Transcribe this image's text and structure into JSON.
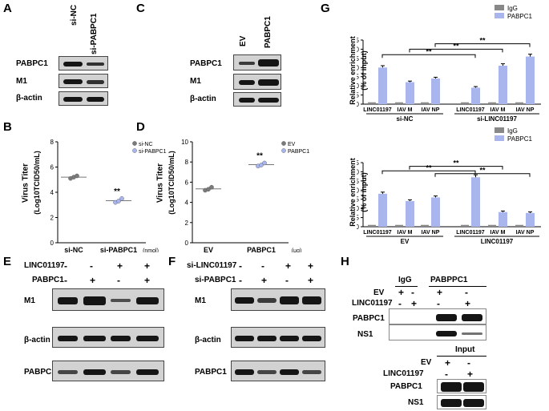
{
  "panels": {
    "A": "A",
    "B": "B",
    "C": "C",
    "D": "D",
    "E": "E",
    "F": "F",
    "G": "G",
    "H": "H"
  },
  "A": {
    "lanes": [
      "si-NC",
      "si-PABPC1"
    ],
    "rows": [
      "PABPC1",
      "M1",
      "β-actin"
    ]
  },
  "C": {
    "lanes": [
      "EV",
      "PABPC1"
    ],
    "rows": [
      "PABPC1",
      "M1",
      "β-actin"
    ]
  },
  "B": {
    "ylabel": "Virus Titer",
    "ylabel2": "(Log10TCID50/mL)",
    "yticks": [
      "0",
      "2",
      "4",
      "6",
      "8"
    ],
    "xcats": [
      "si-NC",
      "si-PABPC1"
    ],
    "xunit": "(nmol)",
    "legend": [
      "si-NC",
      "si-PABPC1"
    ],
    "sig": "**",
    "values": [
      [
        5.1,
        5.2,
        5.3
      ],
      [
        3.2,
        3.3,
        3.5
      ]
    ],
    "ymax": 8
  },
  "D": {
    "ylabel": "Virus Titer",
    "ylabel2": "(Log10TCID50/mL)",
    "yticks": [
      "0",
      "2",
      "4",
      "6",
      "8",
      "10"
    ],
    "xcats": [
      "EV",
      "PABPC1"
    ],
    "xunit": "(μg)",
    "legend": [
      "EV",
      "PABPC1"
    ],
    "sig": "**",
    "values": [
      [
        5.2,
        5.3,
        5.5
      ],
      [
        7.6,
        7.7,
        7.9
      ]
    ],
    "ymax": 10
  },
  "E": {
    "cond": [
      {
        "label": "LINC01197",
        "signs": [
          "-",
          "-",
          "+",
          "+"
        ]
      },
      {
        "label": "PABPC1",
        "signs": [
          "-",
          "+",
          "-",
          "+"
        ]
      }
    ],
    "rows": [
      "M1",
      "β-actin",
      "PABPC1"
    ]
  },
  "F": {
    "cond": [
      {
        "label": "si-LINC01197",
        "signs": [
          "-",
          "-",
          "+",
          "+"
        ]
      },
      {
        "label": "si-PABPC1",
        "signs": [
          "-",
          "+",
          "-",
          "+"
        ]
      }
    ],
    "rows": [
      "M1",
      "β-actin",
      "PABPC1"
    ]
  },
  "G": {
    "ylabel": "Relative enrichment",
    "ylabel2": "(% of input)",
    "yticks": [
      "0",
      "5",
      "10",
      "15",
      "20",
      "25",
      "30",
      "35"
    ],
    "legend": [
      "IgG",
      "PABPC1"
    ],
    "sig": "**",
    "colors": {
      "IgG": "#888888",
      "PABPC1": "#a9b6ee"
    },
    "xcats": [
      "LINC01197",
      "IAV M",
      "IAV NP",
      "LINC01197",
      "IAV M",
      "IAV NP"
    ],
    "top": {
      "groups": [
        "si-NC",
        "si-LINC01197"
      ],
      "IgG": [
        1,
        1,
        1,
        1,
        1,
        1
      ],
      "PABPC1": [
        20,
        12,
        14,
        9,
        21,
        26
      ]
    },
    "bottom": {
      "groups": [
        "EV",
        "LINC01197"
      ],
      "IgG": [
        1,
        1,
        1,
        1,
        1,
        1
      ],
      "PABPC1": [
        18,
        14,
        16,
        27,
        8,
        7.5
      ]
    }
  },
  "H": {
    "col_groups": [
      "IgG",
      "PABPPC1"
    ],
    "cond": [
      {
        "label": "EV",
        "signs": [
          "+",
          "-",
          "+",
          "-"
        ]
      },
      {
        "label": "LINC01197",
        "signs": [
          "-",
          "+",
          "-",
          "+"
        ]
      }
    ],
    "rows": [
      "PABPC1",
      "NS1"
    ],
    "input_title": "Input",
    "input_cond": [
      {
        "label": "EV",
        "signs": [
          "+",
          "-"
        ]
      },
      {
        "label": "LINC01197",
        "signs": [
          "-",
          "+"
        ]
      }
    ],
    "input_rows": [
      "PABPC1",
      "NS1"
    ]
  }
}
